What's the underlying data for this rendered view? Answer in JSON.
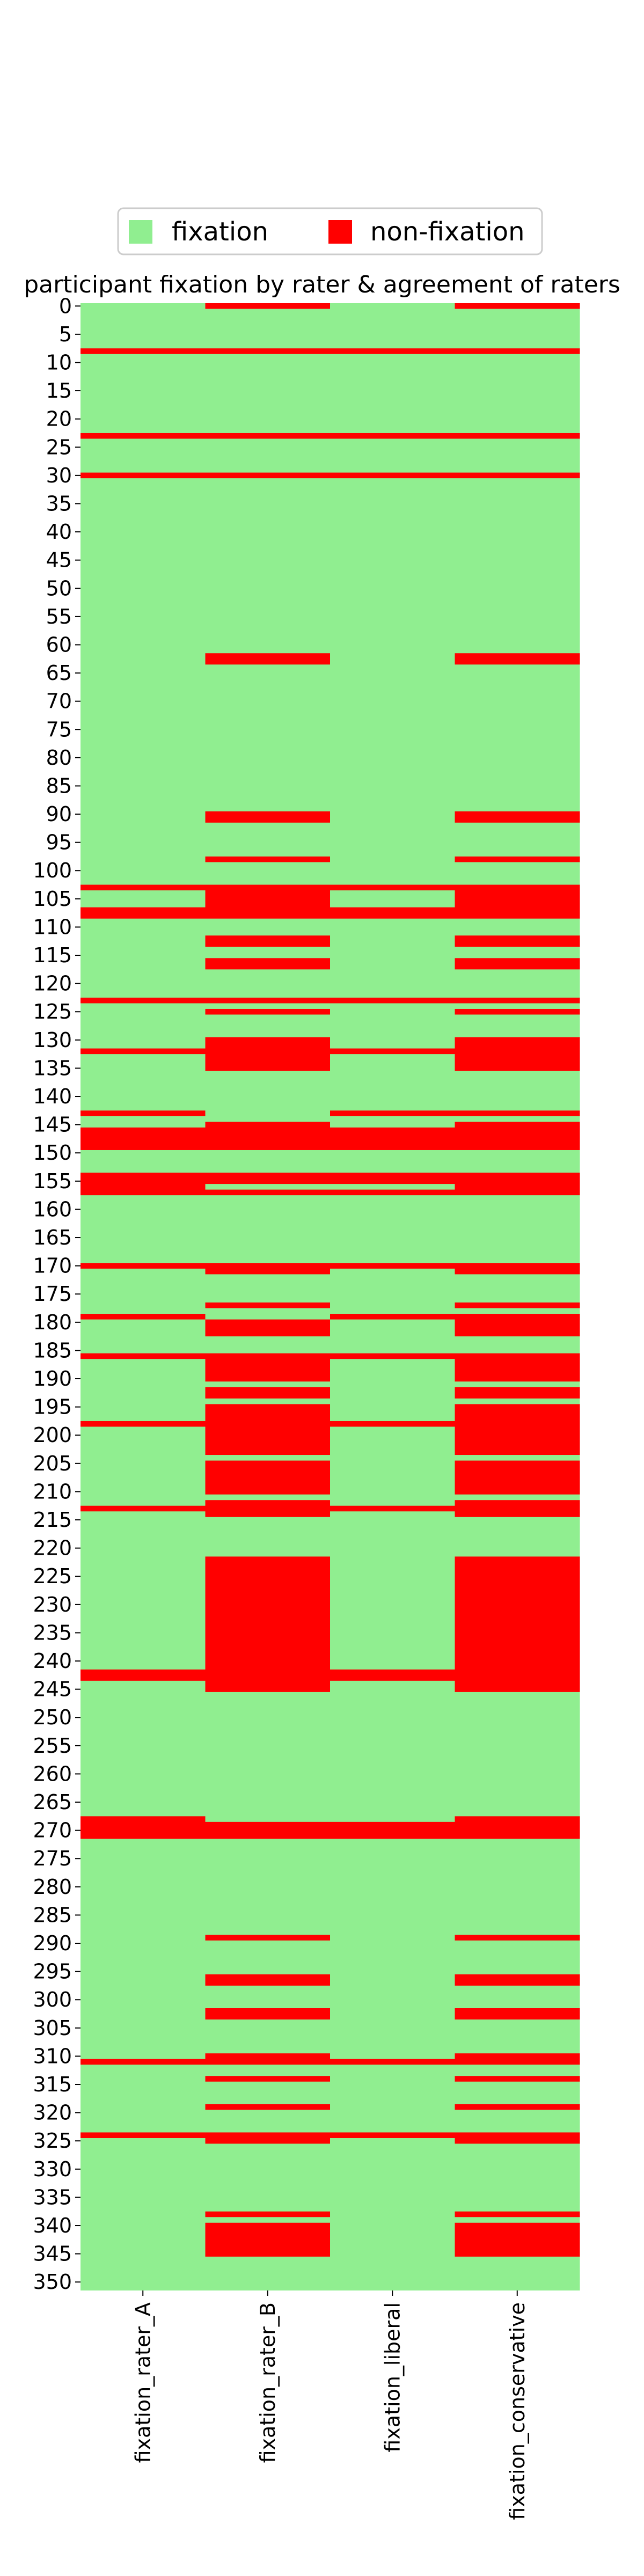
{
  "chart_data": {
    "type": "heatmap",
    "title": "participant fixation by rater & agreement of raters",
    "columns": [
      "fixation_rater_A",
      "fixation_rater_B",
      "fixation_liberal",
      "fixation_conservative"
    ],
    "row_count": 352,
    "ytick_step": 5,
    "ytick_labels": [
      "0",
      "5",
      "10",
      "15",
      "20",
      "25",
      "30",
      "35",
      "40",
      "45",
      "50",
      "55",
      "60",
      "65",
      "70",
      "75",
      "80",
      "85",
      "90",
      "95",
      "100",
      "105",
      "110",
      "115",
      "120",
      "125",
      "130",
      "135",
      "140",
      "145",
      "150",
      "155",
      "160",
      "165",
      "170",
      "175",
      "180",
      "185",
      "190",
      "195",
      "200",
      "205",
      "210",
      "215",
      "220",
      "225",
      "230",
      "235",
      "240",
      "245",
      "250",
      "255",
      "260",
      "265",
      "270",
      "275",
      "280",
      "285",
      "290",
      "295",
      "300",
      "305",
      "310",
      "315",
      "320",
      "325",
      "330",
      "335",
      "340",
      "345",
      "350"
    ],
    "legend": {
      "position": "top-center",
      "items": [
        {
          "label": "fixation",
          "color": "#90EE90"
        },
        {
          "label": "non-fixation",
          "color": "#FF0000"
        }
      ]
    },
    "colors": {
      "fixation": "#90EE90",
      "non_fixation": "#FF0000"
    },
    "non_fixation_rows": {
      "fixation_rater_A": [
        8,
        23,
        30,
        103,
        107,
        108,
        123,
        132,
        143,
        146,
        147,
        148,
        149,
        154,
        155,
        156,
        157,
        170,
        179,
        186,
        198,
        213,
        242,
        243,
        268,
        269,
        270,
        271,
        311,
        324
      ],
      "fixation_rater_B": [
        0,
        8,
        23,
        30,
        62,
        63,
        90,
        91,
        98,
        103,
        104,
        105,
        106,
        107,
        108,
        112,
        113,
        116,
        117,
        123,
        125,
        130,
        131,
        132,
        133,
        134,
        135,
        145,
        146,
        147,
        148,
        149,
        154,
        155,
        157,
        170,
        171,
        177,
        180,
        181,
        182,
        186,
        187,
        188,
        189,
        190,
        192,
        193,
        195,
        196,
        197,
        198,
        199,
        200,
        201,
        202,
        203,
        205,
        206,
        207,
        208,
        209,
        210,
        212,
        213,
        214,
        222,
        223,
        224,
        225,
        226,
        227,
        228,
        229,
        230,
        231,
        232,
        233,
        234,
        235,
        236,
        237,
        238,
        239,
        240,
        241,
        242,
        243,
        244,
        245,
        269,
        270,
        271,
        289,
        296,
        297,
        302,
        303,
        310,
        311,
        314,
        319,
        324,
        325,
        338,
        340,
        341,
        342,
        343,
        344,
        345
      ],
      "fixation_liberal": [
        8,
        23,
        30,
        103,
        107,
        108,
        123,
        132,
        143,
        146,
        147,
        148,
        149,
        154,
        155,
        157,
        170,
        179,
        186,
        198,
        213,
        242,
        243,
        269,
        270,
        271,
        311,
        324
      ],
      "fixation_conservative": [
        0,
        8,
        23,
        30,
        62,
        63,
        90,
        91,
        98,
        103,
        104,
        105,
        106,
        107,
        108,
        112,
        113,
        116,
        117,
        123,
        125,
        130,
        131,
        132,
        133,
        134,
        135,
        143,
        145,
        146,
        147,
        148,
        149,
        154,
        155,
        156,
        157,
        170,
        171,
        177,
        179,
        180,
        181,
        182,
        186,
        187,
        188,
        189,
        190,
        192,
        193,
        195,
        196,
        197,
        198,
        199,
        200,
        201,
        202,
        203,
        205,
        206,
        207,
        208,
        209,
        210,
        212,
        213,
        214,
        222,
        223,
        224,
        225,
        226,
        227,
        228,
        229,
        230,
        231,
        232,
        233,
        234,
        235,
        236,
        237,
        238,
        239,
        240,
        241,
        242,
        243,
        244,
        245,
        268,
        269,
        270,
        271,
        289,
        296,
        297,
        302,
        303,
        310,
        311,
        314,
        319,
        324,
        325,
        338,
        340,
        341,
        342,
        343,
        344,
        345
      ]
    }
  }
}
